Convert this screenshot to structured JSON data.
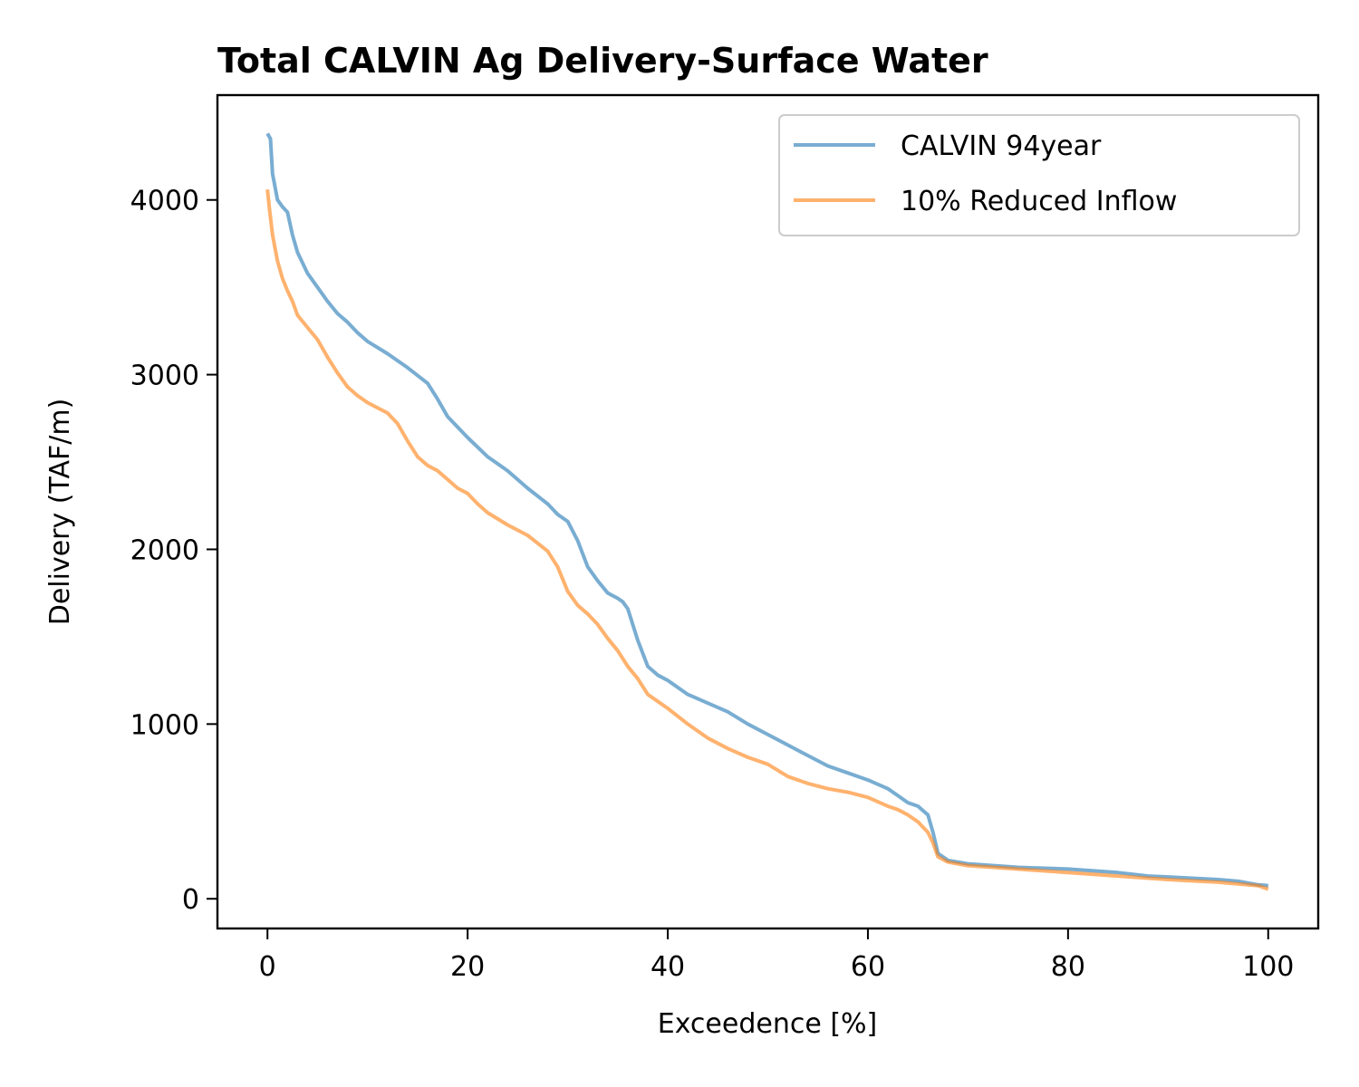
{
  "chart_data": {
    "type": "line",
    "title": "Total CALVIN Ag Delivery-Surface Water",
    "xlabel": "Exceedence [%]",
    "ylabel": "Delivery (TAF/m)",
    "xlim": [
      -5,
      105
    ],
    "ylim": [
      -170,
      4600
    ],
    "xticks": [
      0,
      20,
      40,
      60,
      80,
      100
    ],
    "xtick_labels": [
      "0",
      "20",
      "40",
      "60",
      "80",
      "100"
    ],
    "yticks": [
      0,
      1000,
      2000,
      3000,
      4000
    ],
    "ytick_labels": [
      "0",
      "1000",
      "2000",
      "3000",
      "4000"
    ],
    "grid": false,
    "legend_position": "upper-right",
    "series": [
      {
        "name": "CALVIN 94year",
        "color": "#1f77b4",
        "x": [
          0,
          0.3,
          0.5,
          1,
          1.5,
          2,
          2.5,
          3,
          4,
          5,
          6,
          7,
          8,
          9,
          10,
          12,
          14,
          16,
          17,
          18,
          20,
          22,
          24,
          26,
          28,
          29,
          30,
          31,
          32,
          33,
          34,
          35,
          35.5,
          36,
          37,
          38,
          39,
          40,
          42,
          44,
          46,
          48,
          50,
          52,
          54,
          56,
          58,
          60,
          62,
          63,
          64,
          65,
          66,
          66.5,
          67,
          68,
          70,
          75,
          80,
          85,
          88,
          90,
          95,
          97,
          99,
          100
        ],
        "y": [
          4380,
          4350,
          4150,
          4000,
          3960,
          3930,
          3800,
          3700,
          3580,
          3500,
          3420,
          3350,
          3300,
          3240,
          3190,
          3120,
          3040,
          2950,
          2860,
          2760,
          2640,
          2530,
          2450,
          2350,
          2260,
          2200,
          2160,
          2050,
          1900,
          1820,
          1750,
          1720,
          1700,
          1660,
          1480,
          1330,
          1280,
          1250,
          1170,
          1120,
          1070,
          1000,
          940,
          880,
          820,
          760,
          720,
          680,
          630,
          590,
          550,
          530,
          480,
          380,
          260,
          220,
          200,
          180,
          170,
          150,
          130,
          125,
          110,
          100,
          80,
          75
        ]
      },
      {
        "name": "10% Reduced Inflow",
        "color": "#ff7f0e",
        "x": [
          0,
          0.2,
          0.5,
          1,
          1.5,
          2,
          2.5,
          3,
          4,
          5,
          6,
          7,
          8,
          9,
          10,
          12,
          13,
          14,
          15,
          16,
          17,
          18,
          19,
          20,
          21,
          22,
          24,
          26,
          28,
          29,
          30,
          31,
          32,
          33,
          34,
          35,
          36,
          37,
          38,
          39,
          40,
          42,
          44,
          46,
          48,
          50,
          52,
          54,
          56,
          58,
          60,
          62,
          63,
          64,
          65,
          66,
          66.5,
          67,
          68,
          70,
          75,
          80,
          85,
          90,
          95,
          99,
          100
        ],
        "y": [
          4060,
          3950,
          3800,
          3650,
          3550,
          3480,
          3420,
          3340,
          3270,
          3200,
          3100,
          3010,
          2930,
          2880,
          2840,
          2780,
          2720,
          2620,
          2530,
          2480,
          2450,
          2400,
          2350,
          2320,
          2260,
          2210,
          2140,
          2080,
          1990,
          1900,
          1760,
          1680,
          1630,
          1570,
          1490,
          1420,
          1330,
          1260,
          1170,
          1130,
          1090,
          1000,
          920,
          860,
          810,
          770,
          700,
          660,
          630,
          610,
          580,
          530,
          510,
          480,
          440,
          380,
          320,
          240,
          210,
          190,
          170,
          150,
          130,
          110,
          95,
          75,
          55
        ]
      }
    ]
  }
}
